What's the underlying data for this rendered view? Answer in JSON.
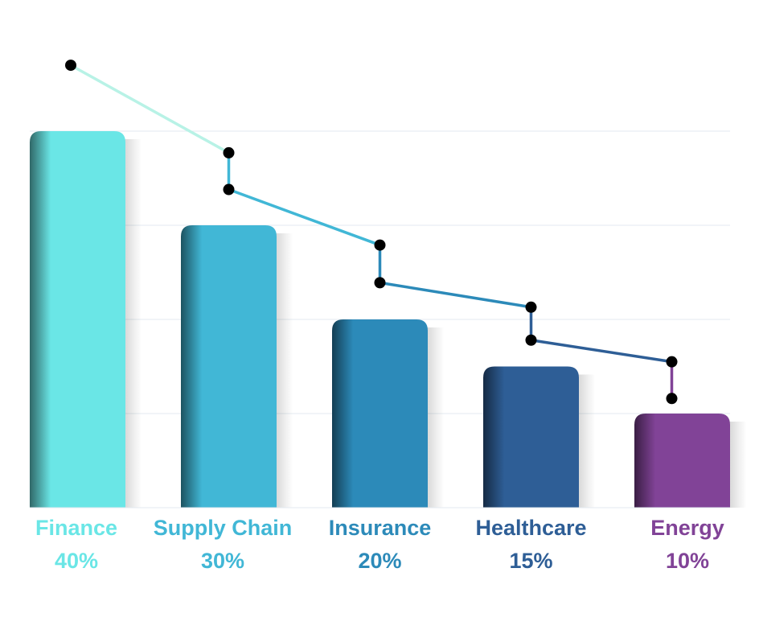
{
  "chart_data": {
    "type": "bar",
    "categories": [
      "Finance",
      "Supply Chain",
      "Insurance",
      "Healthcare",
      "Energy"
    ],
    "values": [
      40,
      30,
      20,
      15,
      10
    ],
    "value_labels": [
      "40%",
      "30%",
      "20%",
      "15%",
      "10%"
    ],
    "colors": [
      "#6ae6e6",
      "#41b7d6",
      "#2c8ab9",
      "#2e5e96",
      "#814397"
    ],
    "overlay_line": {
      "type": "step-line",
      "description_values": [
        {
          "category": "Finance",
          "top": 47,
          "bottom": 47
        },
        {
          "category": "Supply Chain",
          "top": 37.7,
          "bottom": 33.8
        },
        {
          "category": "Insurance",
          "top": 27.9,
          "bottom": 23.9
        },
        {
          "category": "Healthcare",
          "top": 21.3,
          "bottom": 17.8
        },
        {
          "category": "Energy",
          "top": 15.5,
          "bottom": 11.6
        }
      ],
      "segment_colors": [
        "#b8f2e6",
        "#41b7d6",
        "#2c8ab9",
        "#2e5e96",
        "#814397"
      ],
      "marker_color": "#000000"
    },
    "ylim": [
      0,
      40
    ],
    "grid": true,
    "title": "",
    "xlabel": "",
    "ylabel": ""
  }
}
